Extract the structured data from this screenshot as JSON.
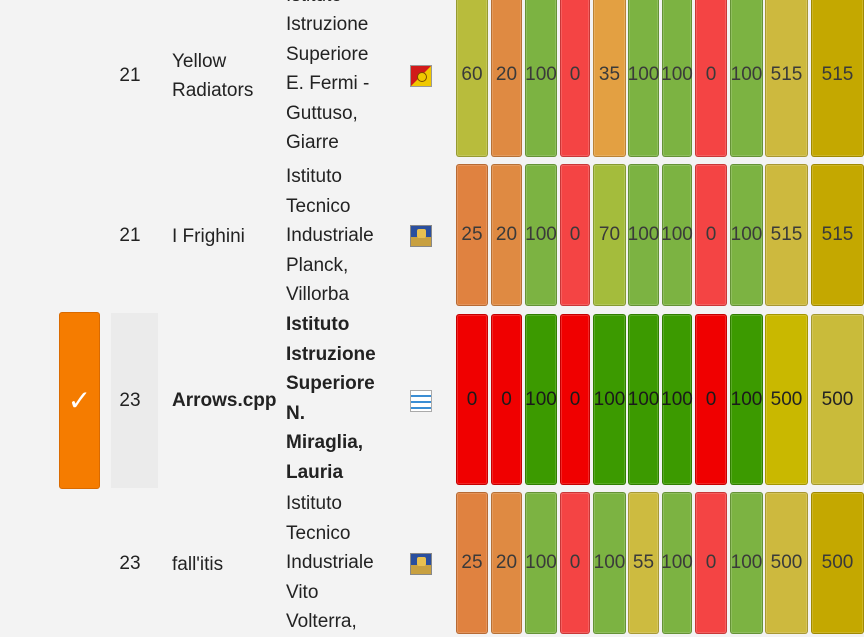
{
  "rows": [
    {
      "rank": "21",
      "team": [
        "Yellow",
        "Radiators"
      ],
      "institute": [
        "Istituto",
        "Istruzione",
        "Superiore",
        "E. Fermi -",
        "Guttuso,",
        "Giarre"
      ],
      "flag": "sicilia-flag-icon",
      "scores": [
        "60",
        "20",
        "100",
        "0",
        "35",
        "100",
        "100",
        "0",
        "100"
      ],
      "score_colors": [
        "#b8bc3c",
        "#df8a42",
        "#7cb342",
        "#f44444",
        "#e3a042",
        "#7cb342",
        "#7cb342",
        "#f44444",
        "#7cb342"
      ],
      "total": "515",
      "total_color": "#cdb93e",
      "final": "515",
      "final_color": "#c4a800",
      "selected": false
    },
    {
      "rank": "21",
      "team": [
        "I Frighini"
      ],
      "institute": [
        "Istituto",
        "Tecnico",
        "Industriale",
        "Planck,",
        "Villorba"
      ],
      "flag": "veneto-flag-icon",
      "scores": [
        "25",
        "20",
        "100",
        "0",
        "70",
        "100",
        "100",
        "0",
        "100"
      ],
      "score_colors": [
        "#e08240",
        "#df8a42",
        "#7cb342",
        "#f44444",
        "#a4bc3c",
        "#7cb342",
        "#7cb342",
        "#f44444",
        "#7cb342"
      ],
      "total": "515",
      "total_color": "#cdb93e",
      "final": "515",
      "final_color": "#c4a800",
      "selected": false
    },
    {
      "rank": "23",
      "team": [
        "Arrows.cpp"
      ],
      "institute": [
        "Istituto",
        "Istruzione",
        "Superiore",
        "N.",
        "Miraglia,",
        "Lauria"
      ],
      "flag": "basilicata-flag-icon",
      "scores": [
        "0",
        "0",
        "100",
        "0",
        "100",
        "100",
        "100",
        "0",
        "100"
      ],
      "score_colors": [
        "#f00000",
        "#f00000",
        "#3c9a00",
        "#f00000",
        "#3c9a00",
        "#3c9a00",
        "#3c9a00",
        "#f00000",
        "#3c9a00"
      ],
      "total": "500",
      "total_color": "#c9b800",
      "final": "500",
      "final_color": "#c9bb3a",
      "selected": true,
      "check": "✓"
    },
    {
      "rank": "23",
      "team": [
        "fall'itis"
      ],
      "institute": [
        "Istituto",
        "Tecnico",
        "Industriale",
        "Vito",
        "Volterra,"
      ],
      "flag": "veneto-flag-icon",
      "scores": [
        "25",
        "20",
        "100",
        "0",
        "100",
        "55",
        "100",
        "0",
        "100"
      ],
      "score_colors": [
        "#e08240",
        "#df8a42",
        "#7cb342",
        "#f44444",
        "#7cb342",
        "#cdbb40",
        "#7cb342",
        "#f44444",
        "#7cb342"
      ],
      "total": "500",
      "total_color": "#cdb93e",
      "final": "500",
      "final_color": "#c4a800",
      "selected": false
    }
  ]
}
